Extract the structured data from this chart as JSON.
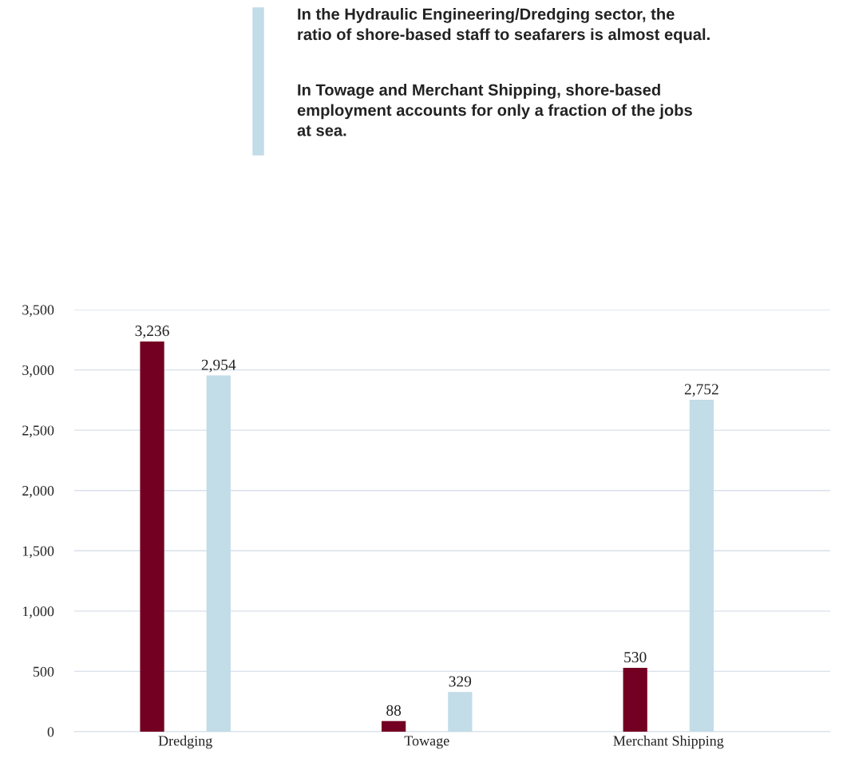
{
  "chart_data": {
    "type": "bar",
    "categories": [
      "Dredging",
      "Towage",
      "Merchant Shipping"
    ],
    "series": [
      {
        "color": "#730022",
        "values": [
          3236,
          88,
          530
        ],
        "value_labels": [
          "3,236",
          "88",
          "530"
        ]
      },
      {
        "color": "#c2dce8",
        "values": [
          2954,
          329,
          2752
        ],
        "value_labels": [
          "2,954",
          "329",
          "2,752"
        ]
      }
    ],
    "ylim": [
      0,
      3500
    ],
    "yticks": [
      0,
      {
        "value": 500,
        "label": "500"
      },
      {
        "value": 1000,
        "label": "1,000"
      },
      {
        "value": 1500,
        "label": "1,500"
      },
      {
        "value": 2000,
        "label": "2,000"
      },
      {
        "value": 2500,
        "label": "2,500"
      },
      {
        "value": 3000,
        "label": "3,000"
      },
      {
        "value": 3500,
        "label": "3,500"
      }
    ],
    "grid": "y",
    "legend": false,
    "annotations": [
      "In the Hydraulic Engineering/Dredging sector, the\nratio of shore-based staff to seafarers is almost equal.",
      "In Towage and Merchant Shipping, shore-based\nemployment accounts for only a fraction of the jobs\nat sea."
    ]
  }
}
